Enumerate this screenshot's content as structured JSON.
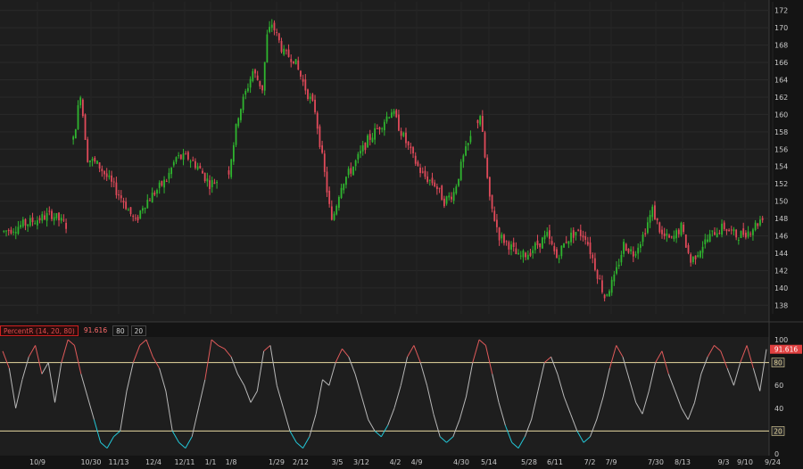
{
  "chart_data": [
    {
      "type": "candlestick",
      "y_ticks": [
        "138",
        "140",
        "142",
        "144",
        "146",
        "148",
        "150",
        "152",
        "154",
        "156",
        "158",
        "160",
        "162",
        "164",
        "166",
        "168",
        "170",
        "172"
      ],
      "ylim": [
        137,
        173
      ],
      "x_ticks": [
        "10/9",
        "10/30",
        "11/13",
        "12/4",
        "12/11",
        "1/1",
        "1/8",
        "1/29",
        "2/12",
        "3/5",
        "3/12",
        "4/2",
        "4/9",
        "4/30",
        "5/14",
        "5/28",
        "6/11",
        "7/2",
        "7/9",
        "7/30",
        "8/13",
        "9/3",
        "9/10",
        "9/24"
      ],
      "approx_close_path": [
        [
          0,
          146.5
        ],
        [
          10,
          147.5
        ],
        [
          20,
          148.5
        ],
        [
          27,
          147
        ],
        [
          29,
          157
        ],
        [
          32,
          162.5
        ],
        [
          35,
          155
        ],
        [
          40,
          154
        ],
        [
          45,
          152
        ],
        [
          50,
          150
        ],
        [
          55,
          147.5
        ],
        [
          58,
          149.5
        ],
        [
          63,
          151
        ],
        [
          68,
          152.5
        ],
        [
          72,
          155
        ],
        [
          77,
          155
        ],
        [
          81,
          154
        ],
        [
          86,
          152
        ],
        [
          90,
          152.5
        ],
        [
          94,
          153.5
        ],
        [
          98,
          160
        ],
        [
          104,
          165
        ],
        [
          108,
          163
        ],
        [
          110,
          169
        ],
        [
          112,
          170.5
        ],
        [
          117,
          167
        ],
        [
          121,
          166.5
        ],
        [
          126,
          163
        ],
        [
          130,
          160.5
        ],
        [
          133,
          155
        ],
        [
          137,
          147.5
        ],
        [
          141,
          152
        ],
        [
          146,
          154
        ],
        [
          152,
          157
        ],
        [
          158,
          159
        ],
        [
          162,
          160.5
        ],
        [
          166,
          158
        ],
        [
          171,
          155
        ],
        [
          175,
          153
        ],
        [
          180,
          152
        ],
        [
          184,
          150
        ],
        [
          188,
          151
        ],
        [
          192,
          155
        ],
        [
          196,
          158
        ],
        [
          199,
          160
        ],
        [
          203,
          150
        ],
        [
          207,
          146
        ],
        [
          211,
          145
        ],
        [
          215,
          143.5
        ],
        [
          219,
          144
        ],
        [
          223,
          145
        ],
        [
          227,
          146
        ],
        [
          231,
          143.5
        ],
        [
          235,
          145.5
        ],
        [
          239,
          146.5
        ],
        [
          243,
          146
        ],
        [
          247,
          142.5
        ],
        [
          251,
          139
        ],
        [
          255,
          141
        ],
        [
          259,
          145
        ],
        [
          263,
          144
        ],
        [
          267,
          146
        ],
        [
          271,
          149
        ],
        [
          275,
          146
        ],
        [
          279,
          145.5
        ],
        [
          283,
          147
        ],
        [
          287,
          143
        ],
        [
          292,
          145
        ],
        [
          297,
          146.5
        ],
        [
          301,
          147
        ],
        [
          306,
          146
        ],
        [
          311,
          146.5
        ],
        [
          315,
          147.5
        ],
        [
          319,
          149
        ],
        [
          322,
          151
        ],
        [
          324,
          148.5
        ]
      ]
    },
    {
      "type": "line",
      "name": "PercentR (14, 20, 80)",
      "current_value": "91.616",
      "levels": [
        "80",
        "20"
      ],
      "y_ticks": [
        "0",
        "20",
        "40",
        "60",
        "80",
        "100"
      ],
      "ylim": [
        0,
        100
      ],
      "overbought": 80,
      "oversold": 20,
      "values": [
        90,
        75,
        40,
        65,
        85,
        95,
        70,
        80,
        45,
        80,
        100,
        95,
        70,
        50,
        30,
        10,
        5,
        15,
        20,
        55,
        80,
        95,
        100,
        85,
        75,
        55,
        20,
        10,
        5,
        15,
        40,
        65,
        100,
        95,
        92,
        85,
        70,
        60,
        45,
        55,
        90,
        95,
        60,
        40,
        20,
        10,
        5,
        15,
        35,
        65,
        60,
        80,
        92,
        85,
        70,
        50,
        30,
        20,
        15,
        25,
        40,
        60,
        85,
        95,
        80,
        60,
        35,
        15,
        10,
        15,
        30,
        50,
        80,
        100,
        95,
        70,
        45,
        25,
        10,
        5,
        15,
        30,
        55,
        80,
        85,
        70,
        50,
        35,
        20,
        10,
        15,
        30,
        50,
        75,
        95,
        85,
        65,
        45,
        35,
        55,
        80,
        90,
        70,
        55,
        40,
        30,
        45,
        70,
        85,
        95,
        90,
        75,
        60,
        80,
        95,
        75,
        55,
        91.616
      ]
    }
  ]
}
